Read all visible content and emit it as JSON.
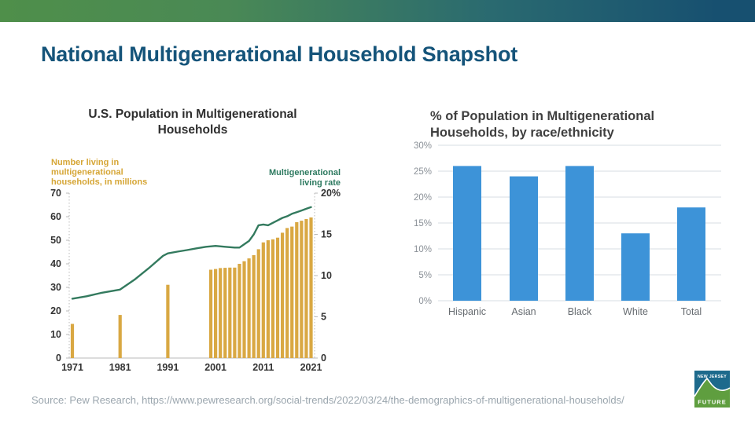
{
  "slide": {
    "title": "National Multigenerational Household Snapshot",
    "source_text": "Source: Pew Research, https://www.pewresearch.org/social-trends/2022/03/24/the-demographics-of-multigenerational-households/",
    "colors": {
      "gradient_left": "#4f8f4a",
      "gradient_right": "#175070",
      "title": "#15547a",
      "source": "#9ba6ae"
    }
  },
  "logo": {
    "top_text": "NEW JERSEY",
    "bottom_text": "FUTURE",
    "blue": "#1d6a8c",
    "green": "#5f9e3f"
  },
  "chart_data": [
    {
      "type": "bar",
      "subtype": "combo-bar-line-dual-axis",
      "title": "U.S. Population in Multigenerational Households",
      "x_ticks": [
        1971,
        1981,
        1991,
        2001,
        2011,
        2021
      ],
      "x_range": [
        1971,
        2021
      ],
      "grid": false,
      "left_axis": {
        "label_lines": [
          "Number living in",
          "multigenerational",
          "households, in millions"
        ],
        "ticks": [
          0,
          10,
          20,
          30,
          40,
          50,
          60,
          70
        ],
        "range": [
          0,
          70
        ],
        "color": "#d6a636"
      },
      "right_axis": {
        "label_lines": [
          "Multigenerational",
          "living rate"
        ],
        "ticks": [
          {
            "v": 0,
            "label": "0"
          },
          {
            "v": 5,
            "label": "5"
          },
          {
            "v": 10,
            "label": "10"
          },
          {
            "v": 15,
            "label": "15"
          },
          {
            "v": 20,
            "label": "20%"
          }
        ],
        "range": [
          0,
          20
        ],
        "color": "#2e7a60"
      },
      "bars": {
        "name": "Number living in multigenerational households (millions)",
        "color": "#d9a843",
        "years": [
          1971,
          1981,
          1991,
          2000,
          2001,
          2002,
          2003,
          2004,
          2005,
          2006,
          2007,
          2008,
          2009,
          2010,
          2011,
          2012,
          2013,
          2014,
          2015,
          2016,
          2017,
          2018,
          2019,
          2020,
          2021
        ],
        "values": [
          14.5,
          18.3,
          31.1,
          37.5,
          37.8,
          38.2,
          38.3,
          38.4,
          38.4,
          40.0,
          41.1,
          42.3,
          43.7,
          46.2,
          49.1,
          50.0,
          50.4,
          51.1,
          53.2,
          55.2,
          55.8,
          57.7,
          58.3,
          59.0,
          59.7
        ]
      },
      "line": {
        "name": "Multigenerational living rate (%)",
        "color": "#337a5e",
        "points": [
          [
            1971,
            7.2
          ],
          [
            1974,
            7.5
          ],
          [
            1977,
            7.9
          ],
          [
            1981,
            8.3
          ],
          [
            1984,
            9.5
          ],
          [
            1987,
            10.9
          ],
          [
            1990,
            12.4
          ],
          [
            1991,
            12.7
          ],
          [
            1993,
            12.9
          ],
          [
            1995,
            13.1
          ],
          [
            1997,
            13.3
          ],
          [
            1999,
            13.5
          ],
          [
            2001,
            13.6
          ],
          [
            2003,
            13.5
          ],
          [
            2005,
            13.4
          ],
          [
            2006,
            13.4
          ],
          [
            2007,
            13.8
          ],
          [
            2008,
            14.2
          ],
          [
            2009,
            15.0
          ],
          [
            2010,
            16.1
          ],
          [
            2011,
            16.2
          ],
          [
            2012,
            16.1
          ],
          [
            2013,
            16.4
          ],
          [
            2014,
            16.7
          ],
          [
            2015,
            17.0
          ],
          [
            2016,
            17.2
          ],
          [
            2017,
            17.5
          ],
          [
            2018,
            17.7
          ],
          [
            2019,
            17.9
          ],
          [
            2020,
            18.1
          ],
          [
            2021,
            18.3
          ]
        ]
      },
      "tick_label_color": "#333333"
    },
    {
      "type": "bar",
      "title": "% of Population in Multigenerational Households, by race/ethnicity",
      "categories": [
        "Hispanic",
        "Asian",
        "Black",
        "White",
        "Total"
      ],
      "values": [
        26,
        24,
        26,
        13,
        18
      ],
      "y_ticks": [
        "0%",
        "5%",
        "10%",
        "15%",
        "20%",
        "25%",
        "30%"
      ],
      "ylim": [
        0,
        30
      ],
      "grid": true,
      "legend": "none",
      "bar_color": "#3d93d8",
      "grid_color": "#d7dde3",
      "tick_color": "#8a9097",
      "category_color": "#666b70"
    }
  ]
}
